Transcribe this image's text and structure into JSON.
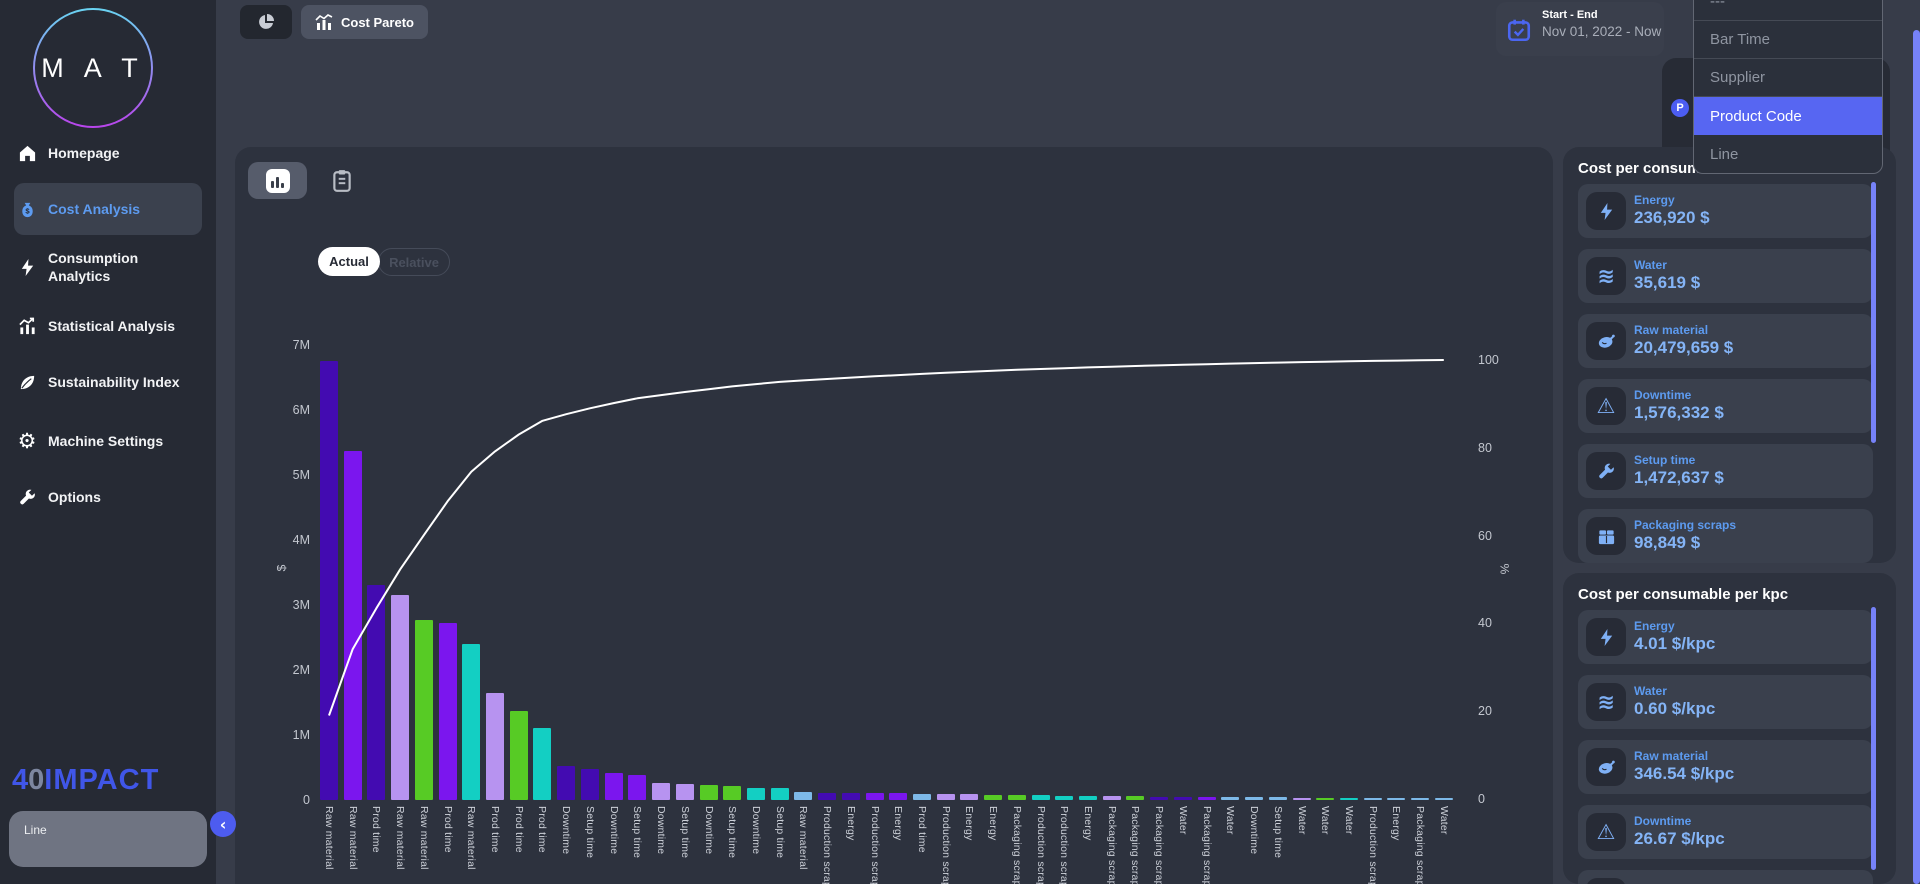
{
  "sidebar": {
    "logo_text": "M A T",
    "items": [
      {
        "label": "Homepage",
        "icon": "home-icon",
        "active": false,
        "two_line": false
      },
      {
        "label": "Cost Analysis",
        "icon": "money-bag-icon",
        "active": true,
        "two_line": false
      },
      {
        "label": "Consumption Analytics",
        "icon": "bolt-icon",
        "active": false,
        "two_line": true,
        "lines": [
          "Consumption",
          "Analytics"
        ]
      },
      {
        "label": "Statistical Analysis",
        "icon": "stats-chart-icon",
        "active": false,
        "two_line": false
      },
      {
        "label": "Sustainability Index",
        "icon": "leaf-icon",
        "active": false,
        "two_line": false
      },
      {
        "label": "Machine Settings",
        "icon": "gear-icon",
        "active": false,
        "two_line": false
      },
      {
        "label": "Options",
        "icon": "wrench-icon",
        "active": false,
        "two_line": false
      }
    ],
    "brand": {
      "part1": "4",
      "part2": "0",
      "part3": "IMPACT"
    },
    "line_filter_label": "Line"
  },
  "topbar": {
    "tab_label": "Cost Pareto",
    "date_label": "Start - End",
    "date_value": "Nov 01, 2022 - Now"
  },
  "dropdown": {
    "badge_letter": "P",
    "items": [
      "---",
      "Bar Time",
      "Supplier",
      "Product Code",
      "Line"
    ],
    "selected": "Product Code"
  },
  "chart_controls": {
    "actual_label": "Actual",
    "relative_label": "Relative"
  },
  "icons": {
    "gear": "⚙",
    "warning": "⚠",
    "waves": "≋",
    "chevron_left": "‹"
  },
  "colors": {
    "accent_blue": "#5766f2",
    "palette": {
      "A": "#430bb1",
      "B": "#7b16ee",
      "C": "#b793f0",
      "D": "#57cb25",
      "E": "#13cfc3",
      "F": "#7db9e8"
    }
  },
  "chart_data": {
    "type": "bar",
    "subtype": "pareto-with-cumulative-line",
    "title": "",
    "left_axis": {
      "title": "$",
      "tick_labels": [
        "0",
        "1M",
        "2M",
        "3M",
        "4M",
        "5M",
        "6M",
        "7M"
      ],
      "max_musd": 7
    },
    "right_axis": {
      "title": "%",
      "ticks": [
        0,
        20,
        40,
        60,
        80,
        100
      ],
      "max": 100
    },
    "line": {
      "meaning": "cumulative percentage of total cost",
      "color": "#ffffff"
    },
    "grid": false,
    "legend": "none",
    "categories": [
      "Raw material",
      "Raw material",
      "Prod time",
      "Raw material",
      "Raw material",
      "Prod time",
      "Raw material",
      "Prod time",
      "Prod time",
      "Prod time",
      "Downtime",
      "Setup time",
      "Downtime",
      "Setup time",
      "Downtime",
      "Setup time",
      "Downtime",
      "Setup time",
      "Downtime",
      "Setup time",
      "Raw material",
      "Production scraps",
      "Energy",
      "Production scraps",
      "Energy",
      "Prod time",
      "Production scraps",
      "Energy",
      "Energy",
      "Packaging scraps",
      "Production scraps",
      "Production scraps",
      "Energy",
      "Packaging scraps",
      "Packaging scraps",
      "Packaging scraps",
      "Water",
      "Packaging scraps",
      "Water",
      "Downtime",
      "Setup time",
      "Water",
      "Water",
      "Water",
      "Production scraps",
      "Energy",
      "Packaging scraps",
      "Water"
    ],
    "values_musd": [
      6.76,
      5.37,
      3.31,
      3.15,
      2.77,
      2.73,
      2.4,
      1.64,
      1.37,
      1.11,
      0.53,
      0.48,
      0.42,
      0.39,
      0.26,
      0.25,
      0.23,
      0.22,
      0.19,
      0.18,
      0.12,
      0.115,
      0.11,
      0.105,
      0.1,
      0.095,
      0.09,
      0.085,
      0.08,
      0.075,
      0.07,
      0.065,
      0.06,
      0.058,
      0.055,
      0.052,
      0.05,
      0.048,
      0.045,
      0.042,
      0.04,
      0.038,
      0.035,
      0.032,
      0.03,
      0.028,
      0.025,
      0.022
    ],
    "bar_colors": [
      "A",
      "B",
      "A",
      "C",
      "D",
      "B",
      "E",
      "C",
      "D",
      "E",
      "A",
      "A",
      "B",
      "B",
      "C",
      "C",
      "D",
      "D",
      "E",
      "E",
      "F",
      "A",
      "A",
      "B",
      "B",
      "F",
      "C",
      "C",
      "D",
      "D",
      "E",
      "E",
      "E",
      "C",
      "D",
      "A",
      "A",
      "B",
      "F",
      "F",
      "F",
      "C",
      "D",
      "E",
      "F",
      "F",
      "F",
      "F"
    ]
  },
  "right_panels": [
    {
      "title": "Cost per consumable",
      "cards": [
        {
          "label": "Energy",
          "value": "236,920 $",
          "icon": "bolt-icon"
        },
        {
          "label": "Water",
          "value": "35,619 $",
          "icon": "waves-icon"
        },
        {
          "label": "Raw material",
          "value": "20,479,659 $",
          "icon": "raw-material-icon"
        },
        {
          "label": "Downtime",
          "value": "1,576,332 $",
          "icon": "warning-icon"
        },
        {
          "label": "Setup time",
          "value": "1,472,637 $",
          "icon": "wrench-icon"
        },
        {
          "label": "Packaging scraps",
          "value": "98,849 $",
          "icon": "package-icon"
        }
      ]
    },
    {
      "title": "Cost per consumable per kpc",
      "cards": [
        {
          "label": "Energy",
          "value": "4.01 $/kpc",
          "icon": "bolt-icon"
        },
        {
          "label": "Water",
          "value": "0.60 $/kpc",
          "icon": "waves-icon"
        },
        {
          "label": "Raw material",
          "value": "346.54 $/kpc",
          "icon": "raw-material-icon"
        },
        {
          "label": "Downtime",
          "value": "26.67 $/kpc",
          "icon": "warning-icon"
        },
        {
          "label": "",
          "value": "",
          "icon": "wrench-icon"
        }
      ]
    }
  ]
}
